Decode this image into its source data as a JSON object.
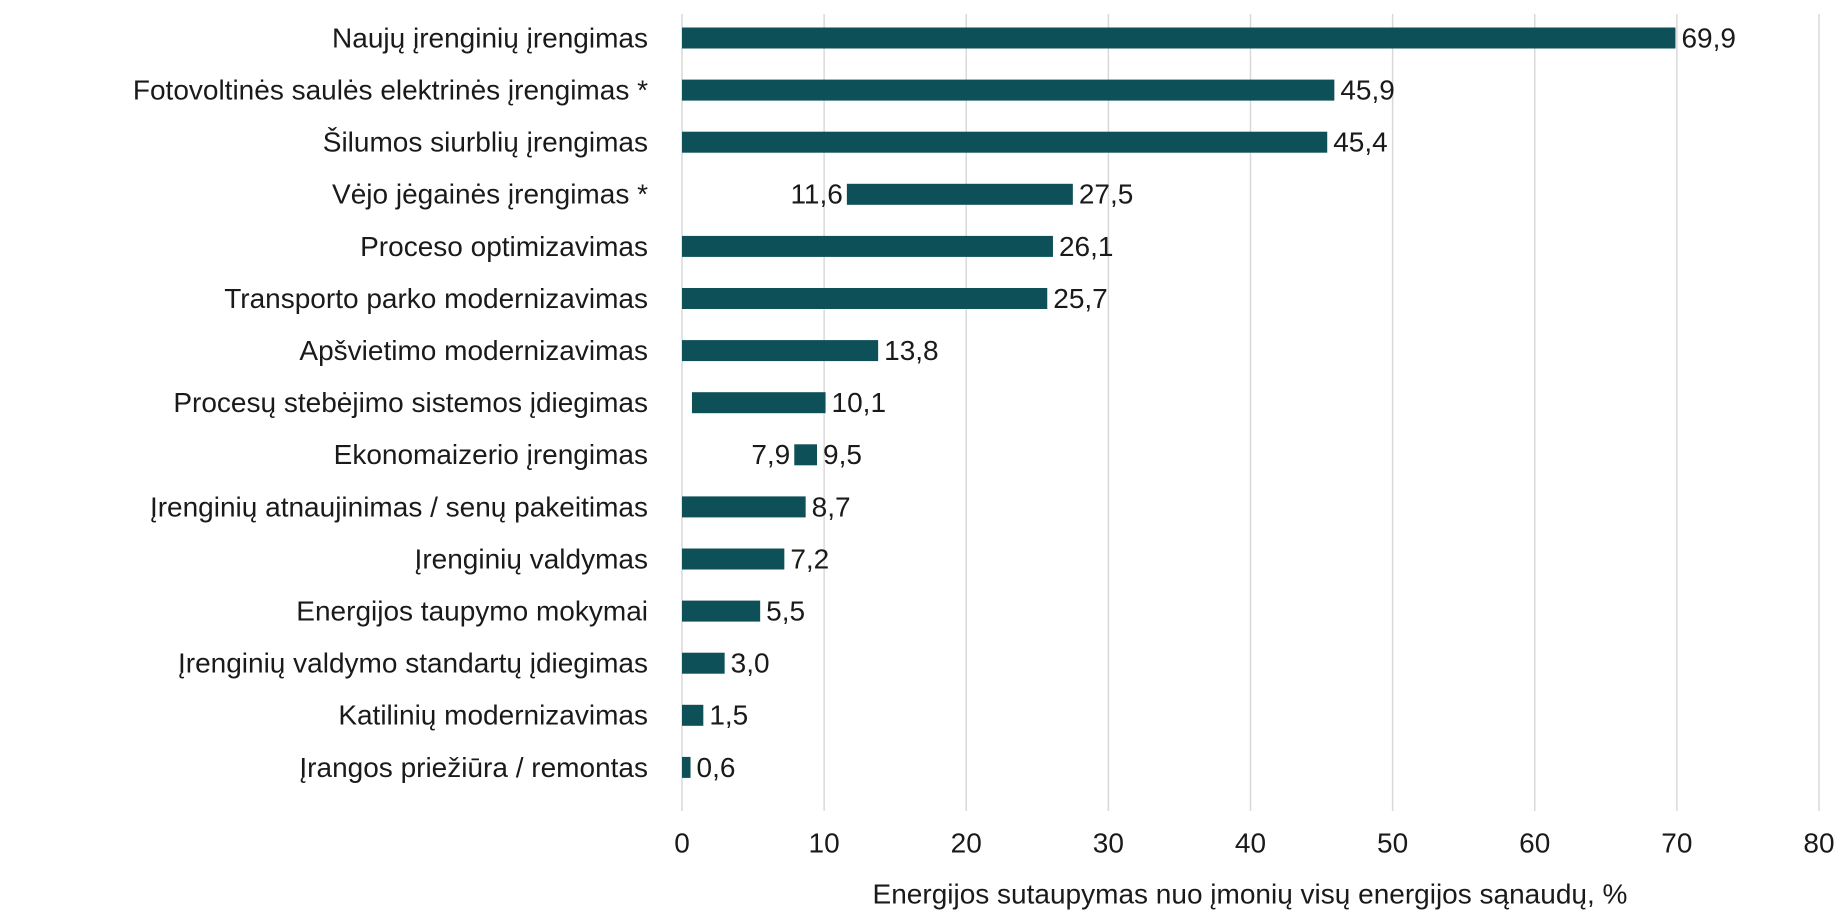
{
  "chart_data": {
    "type": "floating-bar",
    "xlabel": "Energijos sutaupymas nuo įmonių visų energijos sąnaudų, %",
    "categories": [
      "Naujų įrenginių įrengimas",
      "Fotovoltinės saulės elektrinės įrengimas *",
      "Šilumos siurblių įrengimas",
      "Vėjo jėgainės įrengimas *",
      "Proceso optimizavimas",
      "Transporto parko modernizavimas",
      "Apšvietimo modernizavimas",
      "Procesų stebėjimo sistemos įdiegimas",
      "Ekonomaizerio įrengimas",
      "Įrenginių atnaujinimas / senų pakeitimas",
      "Įrenginių valdymas",
      "Energijos taupymo mokymai",
      "Įrenginių valdymo standartų įdiegimas",
      "Katilinių modernizavimas",
      "Įrangos priežiūra / remontas"
    ],
    "starts": [
      0,
      0,
      0,
      11.6,
      0,
      0,
      0,
      0.7,
      7.9,
      0,
      0,
      0,
      0,
      0,
      0
    ],
    "start_labels": [
      null,
      null,
      null,
      "11,6",
      null,
      null,
      null,
      null,
      "7,9",
      null,
      null,
      null,
      null,
      null,
      null
    ],
    "values": [
      69.9,
      45.9,
      45.4,
      27.5,
      26.1,
      25.7,
      13.8,
      10.1,
      9.5,
      8.7,
      7.2,
      5.5,
      3.0,
      1.5,
      0.6
    ],
    "value_labels": [
      "69,9",
      "45,9",
      "45,4",
      "27,5",
      "26,1",
      "25,7",
      "13,8",
      "10,1",
      "9,5",
      "8,7",
      "7,2",
      "5,5",
      "3,0",
      "1,5",
      "0,6"
    ],
    "color": "#0d5058",
    "xlim": [
      0,
      80
    ],
    "xticks": [
      0,
      10,
      20,
      30,
      40,
      50,
      60,
      70,
      80
    ],
    "grid": true
  }
}
